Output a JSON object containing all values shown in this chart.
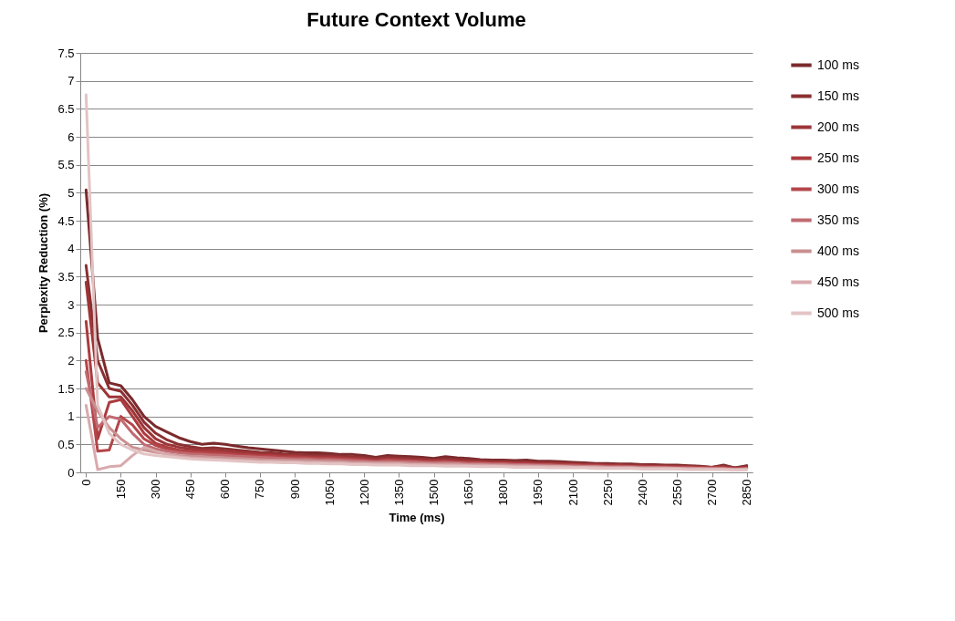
{
  "chart_data": {
    "type": "line",
    "title": "Future Context Volume",
    "xlabel": "Time (ms)",
    "ylabel": "Perplexity Reduction  (%)",
    "x": [
      0,
      50,
      100,
      150,
      200,
      250,
      300,
      350,
      400,
      450,
      500,
      550,
      600,
      650,
      700,
      750,
      800,
      850,
      900,
      950,
      1000,
      1050,
      1100,
      1150,
      1200,
      1250,
      1300,
      1350,
      1400,
      1450,
      1500,
      1550,
      1600,
      1650,
      1700,
      1750,
      1800,
      1850,
      1900,
      1950,
      2000,
      2050,
      2100,
      2150,
      2200,
      2250,
      2300,
      2350,
      2400,
      2450,
      2500,
      2550,
      2600,
      2650,
      2700,
      2750,
      2800,
      2850
    ],
    "xlim": [
      -25,
      2875
    ],
    "xticks": [
      0,
      150,
      300,
      450,
      600,
      750,
      900,
      1050,
      1200,
      1350,
      1500,
      1650,
      1800,
      1950,
      2100,
      2250,
      2400,
      2550,
      2700,
      2850
    ],
    "ylim": [
      0,
      7.5
    ],
    "yticks": [
      0,
      0.5,
      1,
      1.5,
      2,
      2.5,
      3,
      3.5,
      4,
      4.5,
      5,
      5.5,
      6,
      6.5,
      7,
      7.5
    ],
    "grid": "y",
    "legend": "right",
    "series": [
      {
        "name": "100 ms",
        "color": "#7b2a2c",
        "values": [
          5.05,
          2.4,
          1.6,
          1.55,
          1.3,
          1.0,
          0.82,
          0.72,
          0.62,
          0.55,
          0.5,
          0.52,
          0.5,
          0.47,
          0.44,
          0.42,
          0.4,
          0.38,
          0.36,
          0.35,
          0.35,
          0.34,
          0.32,
          0.32,
          0.3,
          0.27,
          0.3,
          0.29,
          0.28,
          0.27,
          0.25,
          0.28,
          0.26,
          0.25,
          0.23,
          0.22,
          0.22,
          0.21,
          0.22,
          0.2,
          0.2,
          0.19,
          0.18,
          0.17,
          0.16,
          0.16,
          0.15,
          0.15,
          0.14,
          0.14,
          0.13,
          0.13,
          0.12,
          0.11,
          0.09,
          0.13,
          0.08,
          0.12
        ]
      },
      {
        "name": "150 ms",
        "color": "#8b3032",
        "values": [
          3.7,
          2.0,
          1.5,
          1.45,
          1.2,
          0.9,
          0.7,
          0.58,
          0.5,
          0.46,
          0.43,
          0.44,
          0.42,
          0.4,
          0.38,
          0.36,
          0.35,
          0.33,
          0.32,
          0.31,
          0.3,
          0.3,
          0.29,
          0.28,
          0.27,
          0.25,
          0.27,
          0.26,
          0.25,
          0.24,
          0.22,
          0.24,
          0.23,
          0.22,
          0.21,
          0.2,
          0.2,
          0.19,
          0.19,
          0.18,
          0.18,
          0.17,
          0.16,
          0.15,
          0.15,
          0.14,
          0.14,
          0.13,
          0.13,
          0.12,
          0.12,
          0.11,
          0.11,
          0.1,
          0.09,
          0.11,
          0.08,
          0.1
        ]
      },
      {
        "name": "200 ms",
        "color": "#9c3538",
        "values": [
          3.4,
          1.6,
          1.35,
          1.35,
          1.1,
          0.8,
          0.6,
          0.5,
          0.45,
          0.42,
          0.4,
          0.4,
          0.38,
          0.36,
          0.35,
          0.33,
          0.32,
          0.3,
          0.3,
          0.29,
          0.28,
          0.28,
          0.27,
          0.26,
          0.25,
          0.23,
          0.25,
          0.24,
          0.23,
          0.22,
          0.21,
          0.22,
          0.21,
          0.2,
          0.19,
          0.18,
          0.18,
          0.17,
          0.17,
          0.16,
          0.16,
          0.15,
          0.15,
          0.14,
          0.14,
          0.13,
          0.13,
          0.12,
          0.12,
          0.11,
          0.11,
          0.1,
          0.1,
          0.09,
          0.09,
          0.1,
          0.07,
          0.09
        ]
      },
      {
        "name": "250 ms",
        "color": "#ab3b3e",
        "values": [
          2.7,
          0.6,
          1.25,
          1.3,
          1.0,
          0.7,
          0.52,
          0.45,
          0.4,
          0.38,
          0.37,
          0.37,
          0.35,
          0.33,
          0.32,
          0.3,
          0.3,
          0.28,
          0.28,
          0.27,
          0.26,
          0.26,
          0.25,
          0.24,
          0.23,
          0.21,
          0.23,
          0.22,
          0.21,
          0.2,
          0.2,
          0.2,
          0.19,
          0.18,
          0.18,
          0.17,
          0.17,
          0.16,
          0.16,
          0.15,
          0.15,
          0.14,
          0.14,
          0.13,
          0.13,
          0.12,
          0.12,
          0.11,
          0.11,
          0.1,
          0.1,
          0.1,
          0.09,
          0.09,
          0.08,
          0.09,
          0.07,
          0.08
        ]
      },
      {
        "name": "300 ms",
        "color": "#b3464a",
        "values": [
          2.0,
          0.38,
          0.4,
          1.0,
          0.85,
          0.6,
          0.48,
          0.42,
          0.38,
          0.36,
          0.35,
          0.34,
          0.33,
          0.31,
          0.3,
          0.29,
          0.28,
          0.27,
          0.26,
          0.26,
          0.25,
          0.25,
          0.24,
          0.23,
          0.22,
          0.2,
          0.22,
          0.21,
          0.2,
          0.19,
          0.19,
          0.19,
          0.18,
          0.17,
          0.17,
          0.16,
          0.16,
          0.15,
          0.15,
          0.14,
          0.14,
          0.13,
          0.13,
          0.12,
          0.12,
          0.11,
          0.11,
          0.1,
          0.1,
          0.1,
          0.09,
          0.09,
          0.08,
          0.08,
          0.08,
          0.08,
          0.06,
          0.07
        ]
      },
      {
        "name": "350 ms",
        "color": "#c06b71",
        "values": [
          1.8,
          0.8,
          1.0,
          0.95,
          0.7,
          0.5,
          0.42,
          0.38,
          0.35,
          0.33,
          0.32,
          0.31,
          0.3,
          0.29,
          0.28,
          0.27,
          0.26,
          0.25,
          0.24,
          0.24,
          0.23,
          0.23,
          0.22,
          0.21,
          0.2,
          0.19,
          0.2,
          0.19,
          0.19,
          0.18,
          0.17,
          0.18,
          0.17,
          0.16,
          0.16,
          0.15,
          0.15,
          0.14,
          0.14,
          0.13,
          0.13,
          0.12,
          0.12,
          0.11,
          0.11,
          0.1,
          0.1,
          0.1,
          0.09,
          0.09,
          0.09,
          0.08,
          0.08,
          0.07,
          0.07,
          0.07,
          0.06,
          0.07
        ]
      },
      {
        "name": "400 ms",
        "color": "#c99090",
        "values": [
          1.5,
          1.1,
          0.8,
          0.6,
          0.45,
          0.4,
          0.36,
          0.33,
          0.3,
          0.29,
          0.28,
          0.27,
          0.26,
          0.25,
          0.24,
          0.23,
          0.22,
          0.22,
          0.21,
          0.21,
          0.2,
          0.2,
          0.19,
          0.18,
          0.18,
          0.17,
          0.17,
          0.17,
          0.16,
          0.16,
          0.15,
          0.15,
          0.15,
          0.14,
          0.14,
          0.13,
          0.13,
          0.12,
          0.12,
          0.12,
          0.11,
          0.11,
          0.1,
          0.1,
          0.1,
          0.09,
          0.09,
          0.09,
          0.08,
          0.08,
          0.08,
          0.07,
          0.07,
          0.07,
          0.06,
          0.06,
          0.05,
          0.06
        ]
      },
      {
        "name": "450 ms",
        "color": "#d8aaad",
        "values": [
          1.2,
          0.05,
          0.1,
          0.12,
          0.3,
          0.45,
          0.38,
          0.32,
          0.28,
          0.26,
          0.25,
          0.24,
          0.23,
          0.22,
          0.21,
          0.2,
          0.2,
          0.19,
          0.19,
          0.18,
          0.18,
          0.17,
          0.17,
          0.16,
          0.16,
          0.15,
          0.15,
          0.15,
          0.14,
          0.14,
          0.13,
          0.13,
          0.13,
          0.12,
          0.12,
          0.12,
          0.11,
          0.11,
          0.11,
          0.1,
          0.1,
          0.1,
          0.09,
          0.09,
          0.09,
          0.08,
          0.08,
          0.08,
          0.07,
          0.07,
          0.07,
          0.07,
          0.06,
          0.06,
          0.06,
          0.06,
          0.05,
          0.05
        ]
      },
      {
        "name": "500 ms",
        "color": "#e3c4c4",
        "values": [
          6.75,
          1.2,
          0.7,
          0.5,
          0.4,
          0.33,
          0.3,
          0.28,
          0.26,
          0.24,
          0.23,
          0.22,
          0.21,
          0.2,
          0.19,
          0.18,
          0.18,
          0.17,
          0.17,
          0.16,
          0.16,
          0.15,
          0.15,
          0.14,
          0.14,
          0.13,
          0.13,
          0.13,
          0.12,
          0.12,
          0.12,
          0.11,
          0.11,
          0.11,
          0.1,
          0.1,
          0.1,
          0.09,
          0.09,
          0.09,
          0.08,
          0.08,
          0.08,
          0.08,
          0.07,
          0.07,
          0.07,
          0.07,
          0.06,
          0.06,
          0.06,
          0.06,
          0.05,
          0.05,
          0.05,
          0.05,
          0.04,
          0.05
        ]
      }
    ]
  }
}
